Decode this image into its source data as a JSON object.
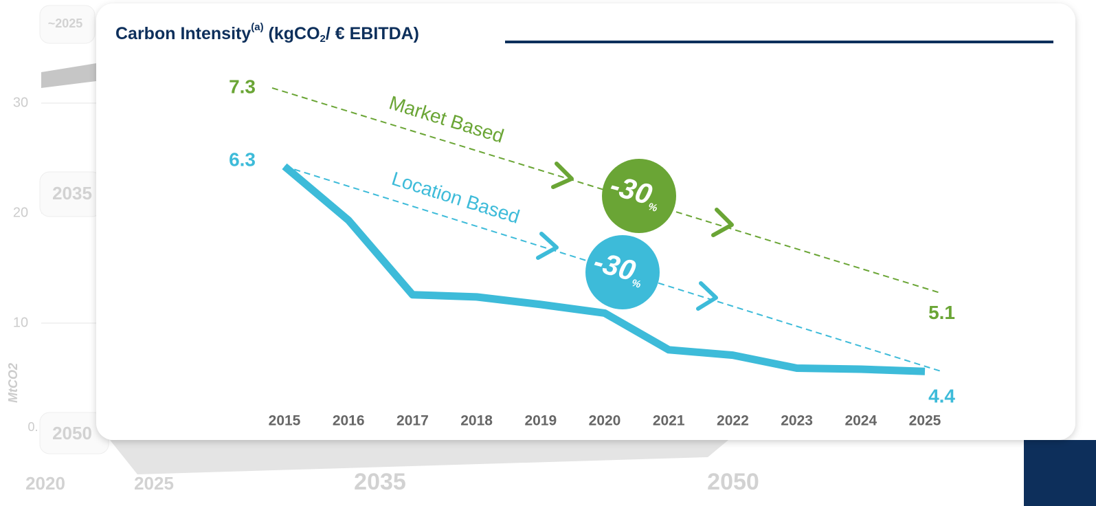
{
  "background": {
    "pills": [
      "~2025",
      "2035",
      "2050"
    ],
    "axis_ticks": [
      "30",
      "20",
      "10",
      "0."
    ],
    "axis_label": "MtCO2",
    "years": [
      "2020",
      "2025",
      "2035",
      "2050"
    ]
  },
  "chart_data": {
    "type": "line",
    "title_parts": [
      "Carbon Intensity",
      "(a)",
      " (kgCO",
      "2",
      "/ € EBITDA)"
    ],
    "categories": [
      "2015",
      "2016",
      "2017",
      "2018",
      "2019",
      "2020",
      "2021",
      "2022",
      "2023",
      "2024",
      "2025"
    ],
    "series": [
      {
        "color": "#3dbbd9",
        "values": [
          6.3,
          5.8,
          5.11,
          5.09,
          5.02,
          4.94,
          4.6,
          4.55,
          4.43,
          4.42,
          4.4
        ]
      }
    ],
    "trends": [
      {
        "name": "Market Based",
        "color": "#6aa535",
        "start": 7.3,
        "end": 5.1,
        "axis": "y2"
      },
      {
        "name": "Location Based",
        "color": "#3dbbd9",
        "start": 6.3,
        "end": 4.4
      }
    ],
    "badges": [
      {
        "text": "-30",
        "unit": "%",
        "color": "#6aa535"
      },
      {
        "text": "-30",
        "unit": "%",
        "color": "#3dbbd9"
      }
    ],
    "ylim": [
      4,
      7
    ],
    "y2lim": [
      3.8,
      7.27
    ]
  }
}
